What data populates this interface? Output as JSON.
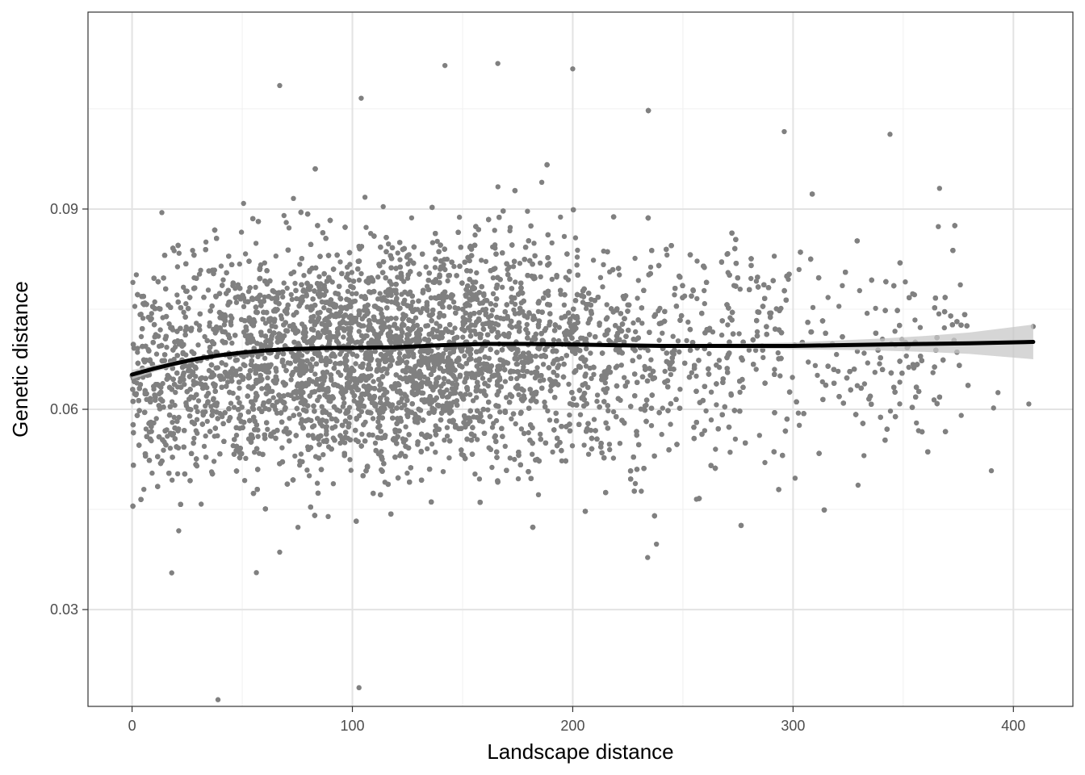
{
  "chart_data": {
    "type": "scatter",
    "xlabel": "Landscape distance",
    "ylabel": "Genetic distance",
    "xlim": [
      -20,
      427
    ],
    "ylim": [
      0.0155,
      0.1195
    ],
    "x_ticks": [
      0,
      100,
      200,
      300,
      400
    ],
    "x_tick_labels": [
      "0",
      "100",
      "200",
      "300",
      "400"
    ],
    "y_ticks": [
      0.03,
      0.06,
      0.09
    ],
    "y_tick_labels": [
      "0.03",
      "0.06",
      "0.09"
    ],
    "grid": true,
    "theme": "black-and-white with light gray grid",
    "point_color": "#808080",
    "point_count_approx": 12000,
    "point_distribution": {
      "x_range": [
        0,
        409
      ],
      "bulk_x_range": [
        0,
        260
      ],
      "y_center": 0.068,
      "y_spread_sd": 0.0085,
      "outliers": [
        {
          "x": 39,
          "y": 0.0165
        },
        {
          "x": 103,
          "y": 0.0183
        },
        {
          "x": 18,
          "y": 0.0355
        },
        {
          "x": 67,
          "y": 0.0386
        },
        {
          "x": 234,
          "y": 0.0378
        },
        {
          "x": 238,
          "y": 0.0398
        },
        {
          "x": 142,
          "y": 0.1115
        },
        {
          "x": 166,
          "y": 0.1118
        },
        {
          "x": 200,
          "y": 0.111
        },
        {
          "x": 67,
          "y": 0.1085
        },
        {
          "x": 104,
          "y": 0.1066
        },
        {
          "x": 296,
          "y": 0.1016
        },
        {
          "x": 344,
          "y": 0.1012
        },
        {
          "x": 390,
          "y": 0.0508
        },
        {
          "x": 407,
          "y": 0.0608
        },
        {
          "x": 409,
          "y": 0.0724
        },
        {
          "x": 391,
          "y": 0.0602
        },
        {
          "x": 393,
          "y": 0.0625
        }
      ]
    },
    "series": [
      {
        "kind": "smooth",
        "color": "#000000",
        "x": [
          0,
          10,
          20,
          30,
          40,
          50,
          60,
          70,
          80,
          90,
          100,
          120,
          140,
          160,
          180,
          200,
          220,
          240,
          260,
          280,
          300,
          320,
          340,
          360,
          380,
          409
        ],
        "y": [
          0.0652,
          0.0661,
          0.0669,
          0.0676,
          0.0681,
          0.0685,
          0.0688,
          0.069,
          0.0691,
          0.0692,
          0.0692,
          0.0693,
          0.0696,
          0.0698,
          0.0698,
          0.0697,
          0.0696,
          0.0695,
          0.0695,
          0.0695,
          0.0695,
          0.0696,
          0.0697,
          0.0698,
          0.0699,
          0.0701
        ],
        "ci_lower": [
          0.0645,
          0.0656,
          0.0665,
          0.0673,
          0.0679,
          0.0683,
          0.0686,
          0.0688,
          0.069,
          0.069,
          0.0691,
          0.0692,
          0.0695,
          0.0697,
          0.0697,
          0.0696,
          0.0694,
          0.0693,
          0.0692,
          0.0691,
          0.069,
          0.0689,
          0.0688,
          0.0686,
          0.0683,
          0.0675
        ],
        "ci_upper": [
          0.0659,
          0.0666,
          0.0673,
          0.0679,
          0.0683,
          0.0687,
          0.069,
          0.0692,
          0.0692,
          0.0694,
          0.0693,
          0.0694,
          0.0697,
          0.0699,
          0.0699,
          0.0698,
          0.0698,
          0.0697,
          0.0698,
          0.0699,
          0.07,
          0.0703,
          0.0706,
          0.071,
          0.0715,
          0.0727
        ]
      }
    ]
  }
}
